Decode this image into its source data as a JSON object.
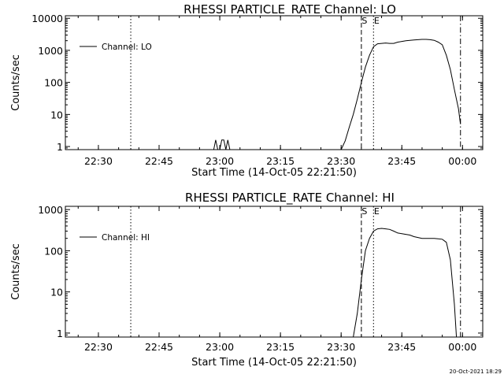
{
  "figure": {
    "timestamp": "20-Oct-2021 18:29"
  },
  "chart_data": [
    {
      "type": "line",
      "title": "RHESSI PARTICLE_RATE Channel: LO",
      "xlabel": "Start Time (14-Oct-05 22:21:50)",
      "ylabel": "Counts/sec",
      "yscale": "log",
      "ylim": [
        0.8,
        12000
      ],
      "xlim": [
        "22:21:50",
        "00:05:00"
      ],
      "xticks": [
        "22:30",
        "22:45",
        "23:00",
        "23:15",
        "23:30",
        "23:45",
        "00:00"
      ],
      "yticks": [
        "1",
        "10",
        "100",
        "1000",
        "10000"
      ],
      "legend": {
        "label": "Channel: LO",
        "placement": "top-left"
      },
      "markers": [
        {
          "label": "",
          "time": "22:38:00",
          "style": "dotted"
        },
        {
          "label": "S",
          "time": "23:35:00",
          "style": "dashed"
        },
        {
          "label": "E",
          "time": "23:38:00",
          "style": "dotted"
        },
        {
          "label": "",
          "time": "23:59:30",
          "style": "dashdot"
        }
      ],
      "series": [
        {
          "name": "Channel: LO",
          "x": [
            "22:21:50",
            "22:40:00",
            "22:58:30",
            "22:59:00",
            "22:59:30",
            "23:00:00",
            "23:00:30",
            "23:01:00",
            "23:01:30",
            "23:02:00",
            "23:02:30",
            "23:03:00",
            "23:30:00",
            "23:31:00",
            "23:32:00",
            "23:33:00",
            "23:34:00",
            "23:35:00",
            "23:36:00",
            "23:37:00",
            "23:38:00",
            "23:39:00",
            "23:40:00",
            "23:41:00",
            "23:42:00",
            "23:43:00",
            "23:44:00",
            "23:45:00",
            "23:46:00",
            "23:47:00",
            "23:48:00",
            "23:49:00",
            "23:50:00",
            "23:51:00",
            "23:52:00",
            "23:53:00",
            "23:54:00",
            "23:55:00",
            "23:56:00",
            "23:57:00",
            "23:58:00",
            "23:59:00",
            "23:59:30"
          ],
          "y": [
            0.8,
            0.8,
            0.8,
            1.6,
            0.8,
            0.8,
            1.6,
            1.6,
            0.8,
            1.6,
            0.8,
            0.8,
            0.8,
            1.5,
            4,
            10,
            30,
            100,
            300,
            700,
            1300,
            1600,
            1650,
            1700,
            1650,
            1650,
            1800,
            1900,
            2000,
            2050,
            2100,
            2150,
            2200,
            2200,
            2150,
            2050,
            1800,
            1500,
            700,
            250,
            60,
            15,
            5
          ]
        }
      ]
    },
    {
      "type": "line",
      "title": "RHESSI PARTICLE_RATE Channel: HI",
      "xlabel": "Start Time (14-Oct-05 22:21:50)",
      "ylabel": "Counts/sec",
      "yscale": "log",
      "ylim": [
        0.8,
        1200
      ],
      "xlim": [
        "22:21:50",
        "00:05:00"
      ],
      "xticks": [
        "22:30",
        "22:45",
        "23:00",
        "23:15",
        "23:30",
        "23:45",
        "00:00"
      ],
      "yticks": [
        "1",
        "10",
        "100",
        "1000"
      ],
      "legend": {
        "label": "Channel: HI",
        "placement": "top-left"
      },
      "markers": [
        {
          "label": "",
          "time": "22:38:00",
          "style": "dotted"
        },
        {
          "label": "S",
          "time": "23:35:00",
          "style": "dashed"
        },
        {
          "label": "E",
          "time": "23:38:00",
          "style": "dotted"
        },
        {
          "label": "",
          "time": "23:59:30",
          "style": "dashdot"
        }
      ],
      "series": [
        {
          "name": "Channel: HI",
          "x": [
            "22:21:50",
            "23:33:00",
            "23:34:00",
            "23:35:00",
            "23:36:00",
            "23:37:00",
            "23:38:00",
            "23:39:00",
            "23:40:00",
            "23:41:00",
            "23:42:00",
            "23:43:00",
            "23:44:00",
            "23:45:00",
            "23:46:00",
            "23:47:00",
            "23:48:00",
            "23:49:00",
            "23:50:00",
            "23:51:00",
            "23:52:00",
            "23:53:00",
            "23:54:00",
            "23:55:00",
            "23:56:00",
            "23:57:00",
            "23:58:00",
            "23:58:30"
          ],
          "y": [
            0.7,
            0.7,
            3,
            20,
            100,
            200,
            300,
            340,
            350,
            340,
            330,
            300,
            270,
            260,
            250,
            240,
            220,
            210,
            200,
            200,
            200,
            200,
            195,
            190,
            160,
            60,
            5,
            0.7
          ]
        }
      ]
    }
  ]
}
